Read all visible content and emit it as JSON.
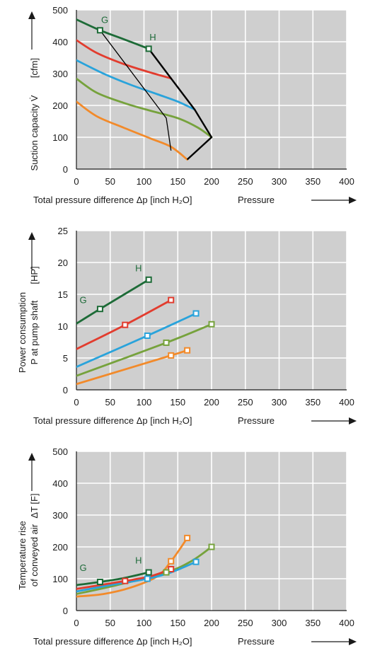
{
  "colors": {
    "plot_bg": "#cfcfcf",
    "grid": "#ffffff",
    "axis": "#1a1a1a",
    "dark_green": "#1d6b37",
    "red": "#e23c2e",
    "blue": "#29a3db",
    "light_green": "#76a23c",
    "orange": "#f28a2a",
    "black": "#000000"
  },
  "chart_data": [
    {
      "type": "line",
      "ylabel_lines": [
        "Suction capacity V̇",
        "[cfm]"
      ],
      "xlabel": "Total pressure difference Δp [inch H₂O]",
      "xlabel_right": "Pressure",
      "xlim": [
        0,
        400
      ],
      "ylim": [
        0,
        500
      ],
      "xticks": [
        "0",
        "50",
        "100",
        "150",
        "200",
        "250",
        "300",
        "350",
        "400"
      ],
      "yticks": [
        "0",
        "100",
        "200",
        "300",
        "400",
        "500"
      ],
      "grid": true,
      "series": [
        {
          "color_key": "dark_green",
          "x": [
            0,
            35,
            70,
            107
          ],
          "y": [
            470,
            436,
            408,
            378
          ],
          "markers": [
            [
              35,
              436
            ],
            [
              107,
              378
            ]
          ],
          "marker_shape": "square"
        },
        {
          "color_key": "red",
          "x": [
            0,
            30,
            70,
            110,
            140
          ],
          "y": [
            405,
            365,
            330,
            303,
            285
          ],
          "markers": [],
          "marker_shape": "none"
        },
        {
          "color_key": "blue",
          "x": [
            0,
            40,
            80,
            120,
            150,
            175
          ],
          "y": [
            342,
            300,
            265,
            235,
            212,
            187
          ],
          "markers": [],
          "marker_shape": "none"
        },
        {
          "color_key": "light_green",
          "x": [
            0,
            30,
            70,
            110,
            150,
            180,
            200
          ],
          "y": [
            284,
            240,
            208,
            183,
            160,
            130,
            100
          ],
          "markers": [],
          "marker_shape": "none"
        },
        {
          "color_key": "orange",
          "x": [
            0,
            30,
            70,
            110,
            140,
            164
          ],
          "y": [
            212,
            166,
            130,
            96,
            70,
            30
          ],
          "markers": [],
          "marker_shape": "none"
        }
      ],
      "envelope": {
        "color_key": "black",
        "width": 2.4,
        "x": [
          107,
          140,
          175,
          200,
          164
        ],
        "y": [
          378,
          285,
          187,
          100,
          30
        ]
      },
      "operating_line": {
        "color_key": "black",
        "width": 1.3,
        "x": [
          35,
          133,
          140
        ],
        "y": [
          436,
          160,
          58
        ]
      },
      "labels": [
        {
          "text": "G",
          "x": 42,
          "y": 459
        },
        {
          "text": "H",
          "x": 113,
          "y": 405
        }
      ]
    },
    {
      "type": "line",
      "ylabel_lines": [
        "Power consumption",
        "P at pump shaft",
        "[HP]"
      ],
      "xlabel": "Total pressure difference Δp [inch H₂O]",
      "xlabel_right": "Pressure",
      "xlim": [
        0,
        400
      ],
      "ylim": [
        0,
        25
      ],
      "xticks": [
        "0",
        "50",
        "100",
        "150",
        "200",
        "250",
        "300",
        "350",
        "400"
      ],
      "yticks": [
        "0",
        "5",
        "10",
        "15",
        "20",
        "25"
      ],
      "grid": true,
      "series": [
        {
          "color_key": "dark_green",
          "x": [
            0,
            35,
            107
          ],
          "y": [
            10.4,
            12.7,
            17.3
          ],
          "markers": [
            [
              35,
              12.7
            ],
            [
              107,
              17.3
            ]
          ],
          "marker_shape": "square"
        },
        {
          "color_key": "red",
          "x": [
            0,
            72,
            140
          ],
          "y": [
            6.4,
            10.2,
            14.1
          ],
          "markers": [
            [
              72,
              10.2
            ],
            [
              140,
              14.1
            ]
          ],
          "marker_shape": "square"
        },
        {
          "color_key": "blue",
          "x": [
            0,
            105,
            177
          ],
          "y": [
            3.6,
            8.5,
            12.0
          ],
          "markers": [
            [
              105,
              8.5
            ],
            [
              177,
              12.0
            ]
          ],
          "marker_shape": "square"
        },
        {
          "color_key": "light_green",
          "x": [
            0,
            133,
            200
          ],
          "y": [
            2.2,
            7.4,
            10.3
          ],
          "markers": [
            [
              133,
              7.4
            ],
            [
              200,
              10.3
            ]
          ],
          "marker_shape": "square"
        },
        {
          "color_key": "orange",
          "x": [
            0,
            140,
            164
          ],
          "y": [
            0.9,
            5.4,
            6.2
          ],
          "markers": [
            [
              140,
              5.4
            ],
            [
              164,
              6.2
            ]
          ],
          "marker_shape": "square"
        }
      ],
      "labels": [
        {
          "text": "G",
          "x": 10,
          "y": 13.6
        },
        {
          "text": "H",
          "x": 92,
          "y": 18.6
        }
      ]
    },
    {
      "type": "line",
      "ylabel_lines": [
        "Temperature rise",
        "of conveyed air",
        "ΔT [F]"
      ],
      "xlabel": "Total pressure difference Δp [inch H₂O]",
      "xlabel_right": "Pressure",
      "xlim": [
        0,
        400
      ],
      "ylim": [
        0,
        500
      ],
      "xticks": [
        "0",
        "50",
        "100",
        "150",
        "200",
        "250",
        "300",
        "350",
        "400"
      ],
      "yticks": [
        "0",
        "100",
        "200",
        "300",
        "400",
        "500"
      ],
      "grid": true,
      "series": [
        {
          "color_key": "dark_green",
          "x": [
            0,
            35,
            70,
            107
          ],
          "y": [
            80,
            90,
            102,
            120
          ],
          "markers": [
            [
              35,
              90
            ],
            [
              107,
              120
            ]
          ],
          "marker_shape": "square"
        },
        {
          "color_key": "red",
          "x": [
            0,
            72,
            110,
            140
          ],
          "y": [
            68,
            93,
            108,
            130
          ],
          "markers": [
            [
              72,
              93
            ],
            [
              140,
              130
            ]
          ],
          "marker_shape": "square"
        },
        {
          "color_key": "blue",
          "x": [
            0,
            50,
            105,
            140,
            177
          ],
          "y": [
            60,
            80,
            100,
            120,
            153
          ],
          "markers": [
            [
              105,
              100
            ],
            [
              177,
              153
            ]
          ],
          "marker_shape": "square"
        },
        {
          "color_key": "light_green",
          "x": [
            0,
            60,
            133,
            170,
            200
          ],
          "y": [
            52,
            80,
            120,
            155,
            200
          ],
          "markers": [
            [
              133,
              120
            ],
            [
              200,
              200
            ]
          ],
          "marker_shape": "square"
        },
        {
          "color_key": "orange",
          "x": [
            0,
            40,
            80,
            120,
            140,
            152,
            164
          ],
          "y": [
            44,
            52,
            72,
            108,
            155,
            190,
            228
          ],
          "markers": [
            [
              140,
              155
            ],
            [
              164,
              228
            ]
          ],
          "marker_shape": "square"
        }
      ],
      "labels": [
        {
          "text": "G",
          "x": 10,
          "y": 124
        },
        {
          "text": "H",
          "x": 92,
          "y": 148
        }
      ]
    }
  ]
}
